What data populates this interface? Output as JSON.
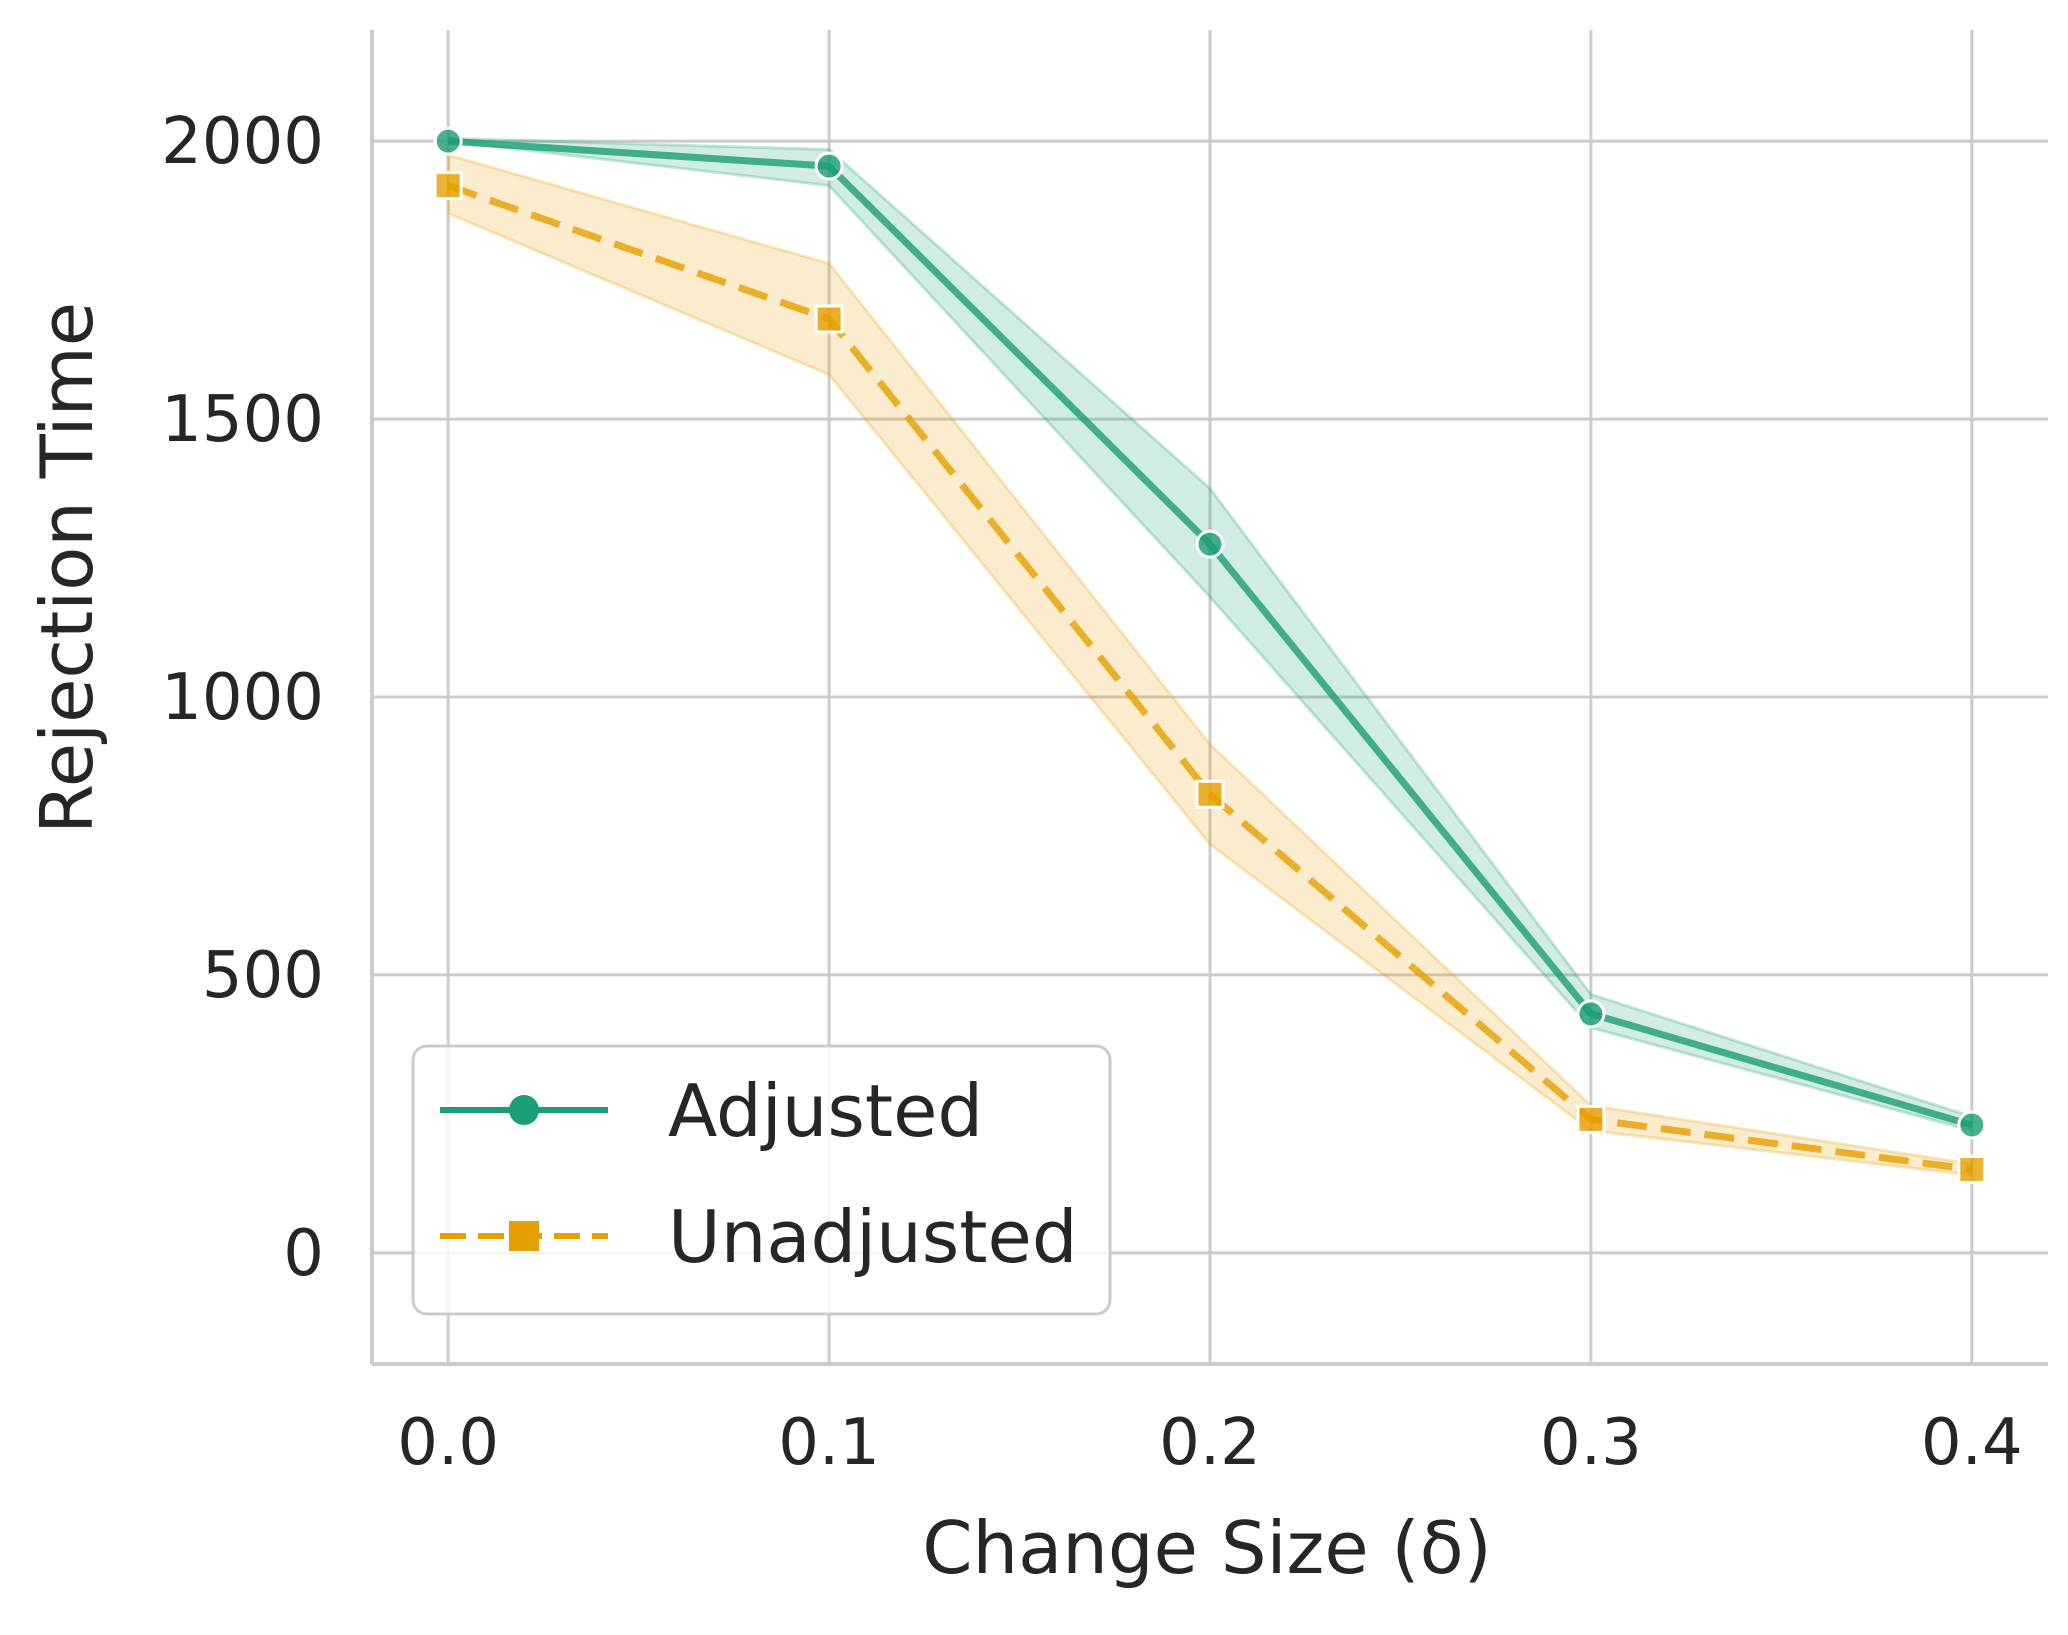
{
  "chart_data": {
    "type": "line",
    "title": "",
    "xlabel": "Change Size (δ)",
    "ylabel": "Rejection Time",
    "x": [
      0.0,
      0.1,
      0.2,
      0.3,
      0.4
    ],
    "x_tick_labels": [
      "0.0",
      "0.1",
      "0.2",
      "0.3",
      "0.4"
    ],
    "y_ticks": [
      0,
      500,
      1000,
      1500,
      2000
    ],
    "y_tick_labels": [
      "0",
      "500",
      "1000",
      "1500",
      "2000"
    ],
    "xlim": [
      -0.02,
      0.42
    ],
    "ylim": [
      -200,
      2200
    ],
    "grid": true,
    "legend_position": "lower-left",
    "series": [
      {
        "name": "Adjusted",
        "color": "#1b9e77",
        "marker": "circle",
        "line_style": "solid",
        "values": [
          2000,
          1955,
          1275,
          430,
          230
        ],
        "ci_lower": [
          2000,
          1920,
          1180,
          405,
          220
        ],
        "ci_upper": [
          2005,
          1985,
          1375,
          465,
          245
        ]
      },
      {
        "name": "Unadjusted",
        "color": "#e69f00",
        "marker": "square",
        "line_style": "dashed",
        "values": [
          1920,
          1680,
          825,
          240,
          150
        ],
        "ci_lower": [
          1870,
          1580,
          735,
          220,
          140
        ],
        "ci_upper": [
          1975,
          1780,
          915,
          265,
          160
        ]
      }
    ]
  }
}
